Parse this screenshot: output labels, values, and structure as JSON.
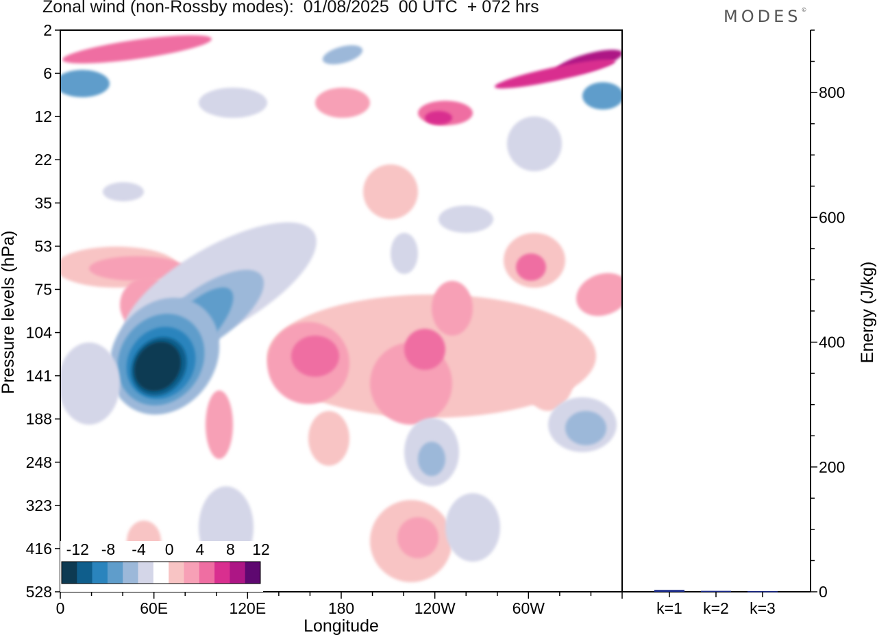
{
  "chart_data": [
    {
      "type": "heatmap",
      "title": "Zonal wind (non-Rossby modes):  01/08/2025  00 UTC  + 072 hrs",
      "xlabel": "Longitude",
      "ylabel": "Pressure levels (hPa)",
      "x_ticks": [
        "0",
        "60E",
        "120E",
        "180",
        "120W",
        "60W"
      ],
      "x_tick_degrees": [
        0,
        60,
        120,
        180,
        240,
        300
      ],
      "xlim_degrees": [
        0,
        360
      ],
      "y_ticks": [
        2,
        6,
        12,
        22,
        35,
        53,
        75,
        104,
        141,
        188,
        248,
        323,
        416,
        528
      ],
      "colorbar": {
        "labels": [
          "-12",
          "-8",
          "-4",
          "0",
          "4",
          "8",
          "12"
        ],
        "colors": [
          "#0d3a52",
          "#0f5e8c",
          "#2a84bd",
          "#5f9dcb",
          "#9cb8d9",
          "#d4d6e8",
          "#ffffff",
          "#f8c4c4",
          "#f7a0b6",
          "#ef6ea2",
          "#d92f8f",
          "#ad1685",
          "#5e0870"
        ]
      },
      "features": [
        {
          "label": "-12",
          "lon": 62,
          "level": 141
        },
        {
          "label": "-8",
          "lon": 88,
          "level": 104
        },
        {
          "label": "-4",
          "lon": 105,
          "level": 75
        },
        {
          "label": "8",
          "lon": 165,
          "level": 141
        },
        {
          "label": "8",
          "lon": 250,
          "level": 12
        },
        {
          "label": "12",
          "lon": 345,
          "level": 6
        }
      ]
    },
    {
      "type": "bar",
      "ylabel": "Energy (J/kg)",
      "categories": [
        "k=1",
        "k=2",
        "k=3"
      ],
      "values": [
        3,
        1.5,
        1
      ],
      "ylim": [
        0,
        900
      ],
      "y_ticks": [
        0,
        200,
        400,
        600,
        800
      ],
      "bar_color": "#1a2a8a"
    }
  ],
  "brand": "MODES"
}
